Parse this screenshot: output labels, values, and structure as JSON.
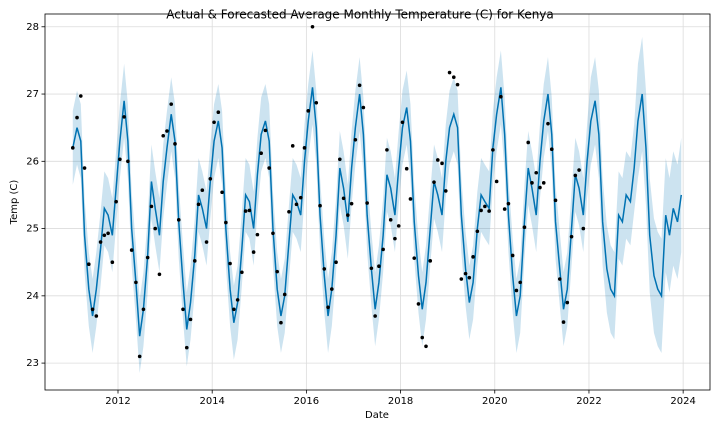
{
  "chart_data": {
    "type": "line",
    "title": "Actual & Forecasted Average Monthly Temperature (C) for Kenya",
    "xlabel": "Date",
    "ylabel": "Temp (C)",
    "xlim": [
      2010.45,
      2024.57
    ],
    "ylim": [
      22.6,
      28.19
    ],
    "xticks": [
      2012,
      2014,
      2016,
      2018,
      2020,
      2022,
      2024
    ],
    "yticks": [
      23,
      24,
      25,
      26,
      27,
      28
    ],
    "grid": true,
    "actual_color": "#000000",
    "forecast_color": "#0072B2",
    "x": [
      2011.04,
      2011.13,
      2011.21,
      2011.29,
      2011.38,
      2011.46,
      2011.54,
      2011.63,
      2011.71,
      2011.79,
      2011.88,
      2011.96,
      2012.04,
      2012.13,
      2012.21,
      2012.29,
      2012.38,
      2012.46,
      2012.54,
      2012.63,
      2012.71,
      2012.79,
      2012.88,
      2012.96,
      2013.04,
      2013.13,
      2013.21,
      2013.29,
      2013.38,
      2013.46,
      2013.54,
      2013.63,
      2013.71,
      2013.79,
      2013.88,
      2013.96,
      2014.04,
      2014.13,
      2014.21,
      2014.29,
      2014.38,
      2014.46,
      2014.54,
      2014.63,
      2014.71,
      2014.79,
      2014.88,
      2014.96,
      2015.04,
      2015.13,
      2015.21,
      2015.29,
      2015.38,
      2015.46,
      2015.54,
      2015.63,
      2015.71,
      2015.79,
      2015.88,
      2015.96,
      2016.04,
      2016.13,
      2016.21,
      2016.29,
      2016.38,
      2016.46,
      2016.54,
      2016.63,
      2016.71,
      2016.79,
      2016.88,
      2016.96,
      2017.04,
      2017.13,
      2017.21,
      2017.29,
      2017.38,
      2017.46,
      2017.54,
      2017.63,
      2017.71,
      2017.79,
      2017.88,
      2017.96,
      2018.04,
      2018.13,
      2018.21,
      2018.29,
      2018.38,
      2018.46,
      2018.54,
      2018.63,
      2018.71,
      2018.79,
      2018.88,
      2018.96,
      2019.04,
      2019.13,
      2019.21,
      2019.29,
      2019.38,
      2019.46,
      2019.54,
      2019.63,
      2019.71,
      2019.79,
      2019.88,
      2019.96,
      2020.04,
      2020.13,
      2020.21,
      2020.29,
      2020.38,
      2020.46,
      2020.54,
      2020.63,
      2020.71,
      2020.79,
      2020.88,
      2020.96,
      2021.04,
      2021.13,
      2021.21,
      2021.29,
      2021.38,
      2021.46,
      2021.54,
      2021.63,
      2021.71,
      2021.79,
      2021.88,
      2021.96,
      2022.04,
      2022.13,
      2022.21,
      2022.29,
      2022.38,
      2022.46,
      2022.54,
      2022.63,
      2022.71,
      2022.79,
      2022.88,
      2022.96,
      2023.04,
      2023.13,
      2023.21,
      2023.29,
      2023.38,
      2023.46,
      2023.54,
      2023.63,
      2023.71,
      2023.79,
      2023.88,
      2023.96
    ],
    "actual": [
      26.2,
      26.65,
      26.97,
      25.9,
      24.47,
      23.8,
      23.7,
      24.8,
      24.9,
      24.93,
      24.5,
      25.4,
      26.03,
      26.66,
      26.0,
      24.68,
      24.2,
      23.1,
      23.8,
      24.57,
      25.33,
      25.0,
      24.32,
      26.38,
      26.45,
      26.85,
      26.26,
      25.13,
      23.8,
      23.23,
      23.65,
      24.52,
      25.36,
      25.57,
      24.8,
      25.74,
      26.58,
      26.73,
      25.54,
      25.09,
      24.48,
      23.8,
      23.94,
      24.35,
      25.26,
      25.27,
      24.65,
      24.91,
      26.12,
      26.46,
      25.9,
      24.93,
      24.36,
      23.6,
      24.02,
      25.25,
      26.23,
      25.36,
      25.46,
      26.2,
      26.75,
      28.0,
      26.87,
      25.34,
      24.4,
      23.83,
      24.1,
      24.5,
      26.03,
      25.45,
      25.2,
      25.37,
      26.32,
      27.13,
      26.8,
      25.38,
      24.41,
      23.7,
      24.44,
      24.69,
      26.17,
      25.13,
      24.85,
      25.04,
      26.58,
      25.89,
      25.44,
      24.56,
      23.88,
      23.38,
      23.25,
      24.52,
      25.69,
      26.02,
      25.97,
      25.56,
      27.32,
      27.25,
      27.14,
      24.25,
      24.33,
      24.27,
      24.58,
      24.96,
      25.27,
      25.33,
      25.26,
      26.17,
      25.7,
      26.96,
      25.29,
      25.37,
      24.6,
      24.08,
      24.2,
      25.02,
      26.28,
      25.68,
      25.83,
      25.61,
      25.68,
      26.56,
      26.18,
      25.42,
      24.25,
      23.61,
      23.9,
      24.88,
      25.79,
      25.87,
      25.0,
      null,
      null,
      null,
      null,
      null,
      null,
      null,
      null,
      null,
      null,
      null,
      null,
      null,
      null,
      null,
      null,
      null,
      null,
      null,
      null,
      null,
      null,
      null,
      null,
      null
    ],
    "yhat": [
      26.2,
      26.5,
      26.3,
      24.9,
      24.1,
      23.7,
      24.1,
      24.7,
      25.3,
      25.2,
      24.9,
      25.6,
      26.3,
      26.9,
      26.3,
      25.0,
      24.2,
      23.4,
      23.8,
      24.6,
      25.7,
      25.3,
      24.9,
      25.7,
      26.2,
      26.7,
      26.3,
      25.1,
      24.2,
      23.5,
      23.9,
      24.6,
      25.5,
      25.3,
      25.0,
      25.7,
      26.3,
      26.6,
      26.2,
      25.0,
      24.1,
      23.6,
      23.9,
      24.7,
      25.5,
      25.4,
      25.0,
      25.8,
      26.4,
      26.6,
      26.3,
      25.0,
      24.1,
      23.7,
      24.0,
      24.8,
      25.5,
      25.4,
      25.2,
      26.0,
      26.6,
      27.1,
      26.5,
      25.2,
      24.3,
      23.7,
      24.1,
      24.9,
      25.9,
      25.6,
      25.1,
      25.9,
      26.5,
      27.0,
      26.4,
      25.2,
      24.4,
      23.8,
      24.2,
      24.9,
      25.8,
      25.6,
      25.2,
      25.9,
      26.5,
      26.8,
      26.3,
      25.1,
      24.3,
      23.8,
      24.2,
      25.0,
      25.7,
      25.5,
      25.2,
      26.0,
      26.5,
      26.7,
      26.5,
      25.2,
      24.4,
      23.9,
      24.2,
      25.0,
      25.5,
      25.4,
      25.3,
      26.2,
      26.7,
      27.1,
      26.4,
      25.2,
      24.3,
      23.7,
      24.0,
      25.1,
      25.9,
      25.6,
      25.2,
      26.0,
      26.6,
      27.0,
      26.4,
      25.1,
      24.4,
      23.8,
      24.1,
      25.0,
      25.8,
      25.6,
      25.2,
      26.0,
      26.6,
      26.9,
      26.4,
      25.1,
      24.4,
      24.1,
      24.0,
      25.2,
      25.1,
      25.5,
      25.4,
      25.9,
      26.6,
      27.0,
      26.2,
      24.9,
      24.3,
      24.1,
      24.0,
      25.2,
      24.9,
      25.3,
      25.1,
      25.5
    ],
    "yhat_lower": [
      25.65,
      25.95,
      25.75,
      24.35,
      23.55,
      23.15,
      23.55,
      24.15,
      24.75,
      24.65,
      24.35,
      25.05,
      25.75,
      26.35,
      25.75,
      24.45,
      23.65,
      22.85,
      23.25,
      24.05,
      25.15,
      24.75,
      24.35,
      25.15,
      25.65,
      26.15,
      25.75,
      24.55,
      23.65,
      22.95,
      23.35,
      24.05,
      24.95,
      24.75,
      24.45,
      25.15,
      25.75,
      26.05,
      25.65,
      24.45,
      23.55,
      23.05,
      23.35,
      24.15,
      24.95,
      24.85,
      24.45,
      25.25,
      25.85,
      26.05,
      25.75,
      24.45,
      23.55,
      23.15,
      23.45,
      24.25,
      24.95,
      24.85,
      24.65,
      25.45,
      26.05,
      26.55,
      25.95,
      24.65,
      23.75,
      23.15,
      23.55,
      24.35,
      25.35,
      25.05,
      24.55,
      25.35,
      25.95,
      26.45,
      25.85,
      24.65,
      23.85,
      23.25,
      23.65,
      24.35,
      25.25,
      25.05,
      24.65,
      25.35,
      25.95,
      26.25,
      25.75,
      24.55,
      23.75,
      23.25,
      23.65,
      24.45,
      25.15,
      24.95,
      24.65,
      25.45,
      25.95,
      26.15,
      25.95,
      24.65,
      23.85,
      23.35,
      23.65,
      24.45,
      24.95,
      24.85,
      24.75,
      25.65,
      26.15,
      26.55,
      25.85,
      24.65,
      23.75,
      23.15,
      23.45,
      24.55,
      25.35,
      25.05,
      24.65,
      25.45,
      26.05,
      26.45,
      25.85,
      24.55,
      23.85,
      23.25,
      23.55,
      24.45,
      25.25,
      25.05,
      24.65,
      25.45,
      25.95,
      26.25,
      25.75,
      24.45,
      23.75,
      23.45,
      23.35,
      24.55,
      24.45,
      24.85,
      24.75,
      25.25,
      25.75,
      26.15,
      25.35,
      24.05,
      23.45,
      23.25,
      23.15,
      24.35,
      24.05,
      24.45,
      24.25,
      24.65
    ],
    "yhat_upper": [
      26.75,
      27.05,
      26.85,
      25.45,
      24.65,
      24.25,
      24.65,
      25.25,
      25.85,
      25.75,
      25.45,
      26.15,
      26.85,
      27.45,
      26.85,
      25.55,
      24.75,
      23.95,
      24.35,
      25.15,
      26.25,
      25.85,
      25.45,
      26.25,
      26.75,
      27.25,
      26.85,
      25.65,
      24.75,
      24.05,
      24.45,
      25.15,
      26.05,
      25.85,
      25.55,
      26.25,
      26.85,
      27.15,
      26.75,
      25.55,
      24.65,
      24.15,
      24.45,
      25.25,
      26.05,
      25.95,
      25.55,
      26.35,
      26.95,
      27.15,
      26.85,
      25.55,
      24.65,
      24.25,
      24.55,
      25.35,
      26.05,
      25.95,
      25.75,
      26.55,
      27.15,
      27.65,
      27.05,
      25.75,
      24.85,
      24.25,
      24.65,
      25.45,
      26.45,
      26.15,
      25.65,
      26.45,
      27.05,
      27.55,
      26.95,
      25.75,
      24.95,
      24.35,
      24.75,
      25.45,
      26.35,
      26.15,
      25.75,
      26.45,
      27.05,
      27.35,
      26.85,
      25.65,
      24.85,
      24.35,
      24.75,
      25.55,
      26.25,
      26.05,
      25.75,
      26.55,
      27.05,
      27.25,
      27.05,
      25.75,
      24.95,
      24.45,
      24.75,
      25.55,
      26.05,
      25.95,
      25.85,
      26.75,
      27.25,
      27.65,
      26.95,
      25.75,
      24.85,
      24.25,
      24.55,
      25.65,
      26.45,
      26.15,
      25.75,
      26.55,
      27.15,
      27.55,
      26.95,
      25.65,
      24.95,
      24.35,
      24.65,
      25.55,
      26.35,
      26.15,
      25.75,
      26.55,
      27.25,
      27.55,
      27.05,
      25.75,
      25.05,
      24.75,
      24.65,
      25.85,
      25.75,
      26.15,
      26.05,
      26.55,
      27.45,
      27.85,
      27.05,
      25.75,
      25.15,
      24.95,
      24.85,
      26.05,
      25.75,
      26.15,
      25.95,
      26.35
    ]
  }
}
